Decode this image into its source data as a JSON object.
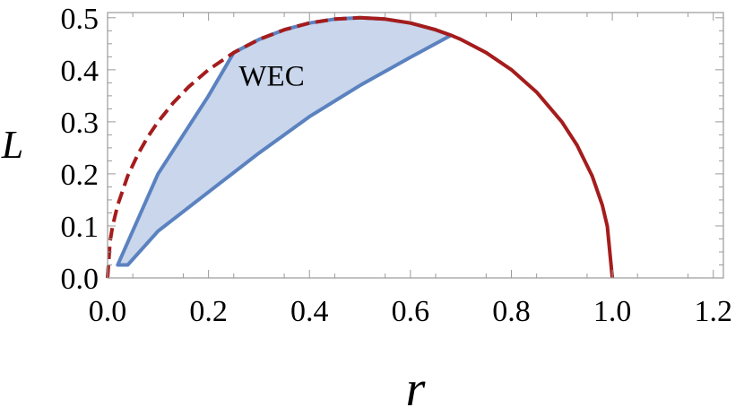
{
  "chart_data": {
    "type": "line",
    "xlabel": "r",
    "ylabel": "L",
    "xlim": [
      0.0,
      1.22
    ],
    "ylim": [
      0.0,
      0.51
    ],
    "xticks": [
      "0.0",
      "0.2",
      "0.4",
      "0.6",
      "0.8",
      "1.0",
      "1.2"
    ],
    "yticks": [
      "0.0",
      "0.1",
      "0.2",
      "0.3",
      "0.4",
      "0.5"
    ],
    "grid": false,
    "annotations": [
      {
        "text": "WEC",
        "x": 0.26,
        "y": 0.37
      }
    ],
    "series": [
      {
        "style": "dashed",
        "color": "#a51c1c",
        "x": [
          0.0,
          0.005,
          0.01,
          0.02,
          0.04,
          0.06,
          0.08,
          0.1,
          0.13,
          0.16,
          0.2,
          0.25,
          0.3,
          0.35,
          0.4,
          0.45,
          0.5
        ],
        "y": [
          0.0,
          0.0705,
          0.0995,
          0.14,
          0.196,
          0.2375,
          0.2713,
          0.3,
          0.3363,
          0.3666,
          0.4,
          0.433,
          0.4583,
          0.477,
          0.4899,
          0.4975,
          0.5
        ]
      },
      {
        "style": "solid",
        "color": "#a51c1c",
        "x": [
          0.5,
          0.55,
          0.6,
          0.65,
          0.68,
          0.7,
          0.75,
          0.8,
          0.85,
          0.9,
          0.93,
          0.96,
          0.98,
          0.99,
          1.0
        ],
        "y": [
          0.5,
          0.4975,
          0.4899,
          0.477,
          0.4665,
          0.4583,
          0.433,
          0.4,
          0.3571,
          0.3,
          0.2551,
          0.196,
          0.14,
          0.0995,
          0.0
        ]
      },
      {
        "style": "region",
        "color": "#5b82c0",
        "fill": "#c6d4ea",
        "x": [
          0.02,
          0.1,
          0.2,
          0.25,
          0.3,
          0.35,
          0.4,
          0.45,
          0.5,
          0.55,
          0.6,
          0.65,
          0.68,
          0.6,
          0.5,
          0.4,
          0.3,
          0.2,
          0.1,
          0.04,
          0.02
        ],
        "y": [
          0.025,
          0.2,
          0.35,
          0.433,
          0.4583,
          0.477,
          0.4899,
          0.4975,
          0.5,
          0.4975,
          0.4899,
          0.477,
          0.466,
          0.424,
          0.37,
          0.31,
          0.24,
          0.165,
          0.09,
          0.025,
          0.025
        ]
      }
    ]
  }
}
